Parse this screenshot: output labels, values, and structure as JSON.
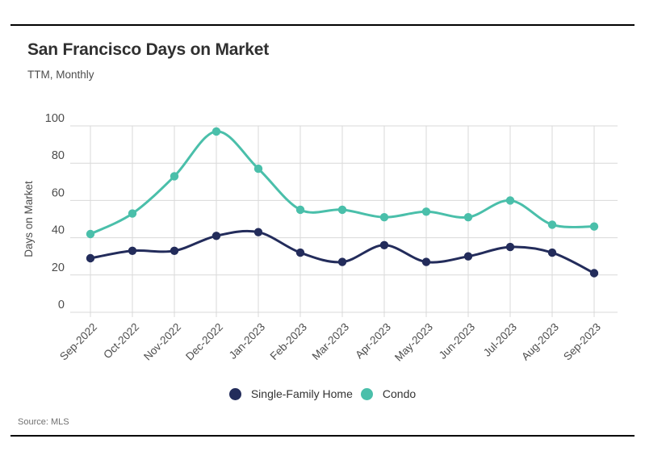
{
  "page": {
    "title": "San Francisco Days on Market",
    "subtitle": "TTM, Monthly",
    "source": "Source: MLS"
  },
  "chart_data": {
    "type": "line",
    "title": "San Francisco Days on Market",
    "subtitle": "TTM, Monthly",
    "xlabel": "",
    "ylabel": "Days on Market",
    "ylim": [
      0,
      100
    ],
    "yticks": [
      0,
      20,
      40,
      60,
      80,
      100
    ],
    "grid": true,
    "curve": "smooth",
    "legend_position": "bottom",
    "source": "Source: MLS",
    "categories": [
      "Sep-2022",
      "Oct-2022",
      "Nov-2022",
      "Dec-2022",
      "Jan-2023",
      "Feb-2023",
      "Mar-2023",
      "Apr-2023",
      "May-2023",
      "Jun-2023",
      "Jul-2023",
      "Aug-2023",
      "Sep-2023"
    ],
    "series": [
      {
        "name": "Single-Family Home",
        "color": "#232C5B",
        "values": [
          29,
          33,
          33,
          41,
          43,
          32,
          27,
          36,
          27,
          30,
          35,
          32,
          21
        ]
      },
      {
        "name": "Condo",
        "color": "#4ABFAA",
        "values": [
          42,
          53,
          73,
          97,
          77,
          55,
          55,
          51,
          54,
          51,
          60,
          47,
          46
        ]
      }
    ],
    "style": {
      "grid_color": "#d9d9d9",
      "tick_label_color": "#4d4d4d",
      "axis_label_color": "#4d4d4d",
      "line_width": 3,
      "point_radius": 5.2
    }
  }
}
